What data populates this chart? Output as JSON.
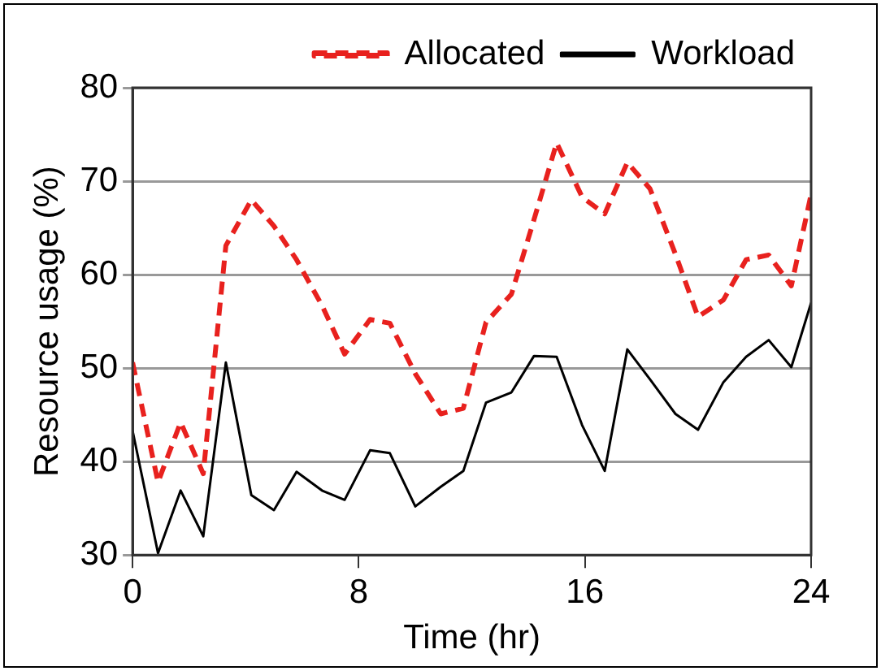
{
  "chart_data": {
    "type": "line",
    "xlabel": "Time (hr)",
    "ylabel": "Resource usage (%)",
    "x": [
      0,
      0.9,
      1.7,
      2.5,
      3.3,
      4.2,
      5,
      5.8,
      6.7,
      7.5,
      8.4,
      9.1,
      10,
      10.9,
      11.7,
      12.5,
      13.4,
      14.2,
      15,
      15.9,
      16.7,
      17.5,
      18.3,
      19.2,
      20,
      20.9,
      21.7,
      22.5,
      23.3,
      24
    ],
    "series": [
      {
        "name": "Allocated",
        "color": "#e8211e",
        "line_style": "dashed",
        "values": [
          50.6,
          37.8,
          44.2,
          38.7,
          63.1,
          68,
          65.2,
          61.6,
          56.7,
          51.5,
          55.2,
          54.8,
          49.4,
          45.1,
          45.7,
          54.9,
          57.9,
          65.9,
          74.1,
          68.3,
          66.5,
          72,
          69.2,
          62.2,
          55.5,
          57.3,
          61.6,
          62.1,
          58.8,
          68.6
        ]
      },
      {
        "name": "Workload",
        "color": "#000000",
        "line_style": "solid",
        "values": [
          43.3,
          30.2,
          36.9,
          32,
          50.6,
          36.4,
          34.8,
          38.9,
          36.9,
          35.9,
          41.2,
          40.9,
          35.2,
          37.3,
          39,
          46.3,
          47.4,
          51.3,
          51.2,
          43.9,
          39,
          52,
          48.8,
          45.1,
          43.4,
          48.5,
          51.2,
          53,
          50.1,
          57
        ]
      }
    ],
    "xlim": [
      0,
      24
    ],
    "xticks": [
      0,
      8,
      16,
      24
    ],
    "ylim": [
      30,
      80
    ],
    "yticks": [
      30,
      40,
      50,
      60,
      70,
      80
    ],
    "grid": "y",
    "legend": "top",
    "marker": "none"
  }
}
